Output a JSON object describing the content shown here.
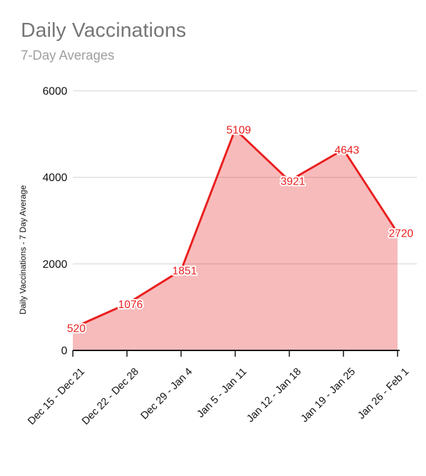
{
  "header": {
    "title": "Daily Vaccinations",
    "subtitle": "7-Day Averages"
  },
  "chart_data": {
    "type": "area",
    "title": "Daily Vaccinations",
    "subtitle": "7-Day Averages",
    "categories": [
      "Dec 15 - Dec 21",
      "Dec 22 - Dec 28",
      "Dec 29 - Jan 4",
      "Jan 5 - Jan 11",
      "Jan 12 - Jan 18",
      "Jan 19 - Jan 25",
      "Jan 26 - Feb 1"
    ],
    "values": [
      520,
      1076,
      1851,
      5109,
      3921,
      4643,
      2720
    ],
    "data_labels": [
      "520",
      "1076",
      "1851",
      "5109",
      "3921",
      "4643",
      "2720"
    ],
    "xlabel": "",
    "ylabel": "Daily Vaccinations - 7 Day Average",
    "y_ticks": [
      0,
      2000,
      4000,
      6000
    ],
    "ylim": [
      0,
      6000
    ],
    "grid": true,
    "legend_position": "none",
    "line_color": "#e91f1f",
    "fill_color": "rgba(233,31,31,0.30)",
    "label_color": "#e91f1f",
    "grid_color": "#d2d2d2",
    "axis_color": "#111111"
  }
}
